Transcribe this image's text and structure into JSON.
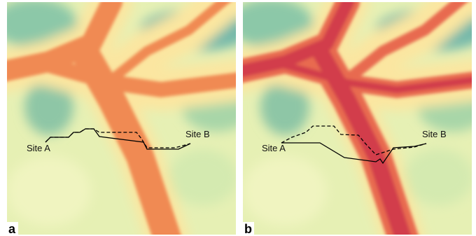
{
  "panels": [
    {
      "label": "a",
      "site_a": "Site A",
      "site_b": "Site B"
    },
    {
      "label": "b",
      "site_a": "Site A",
      "site_b": "Site B"
    }
  ]
}
